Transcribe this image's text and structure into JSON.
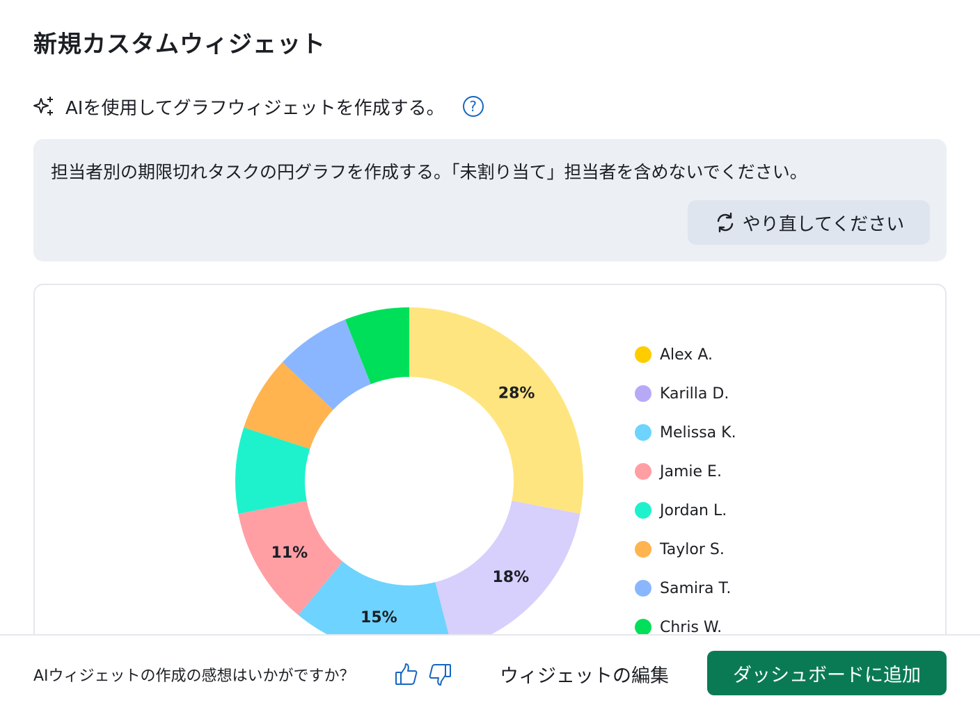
{
  "title": "新規カスタムウィジェット",
  "ai_prompt_label": "AIを使用してグラフウィジェットを作成する。",
  "help_icon_label": "?",
  "prompt_text": "担当者別の期限切れタスクの円グラフを作成する。「未割り当て」担当者を含めないでください。",
  "retry_label": "やり直してください",
  "chart_data": {
    "type": "pie",
    "variant": "donut",
    "series": [
      {
        "name": "Alex A.",
        "value": 28,
        "color": "#ffe57f",
        "legend_color": "#ffcc00",
        "label": "28%"
      },
      {
        "name": "Karilla D.",
        "value": 18,
        "color": "#d7cffc",
        "legend_color": "#b8a9f7",
        "label": "18%"
      },
      {
        "name": "Melissa K.",
        "value": 15,
        "color": "#6ed3fe",
        "legend_color": "#6ed3fe",
        "label": "15%"
      },
      {
        "name": "Jamie E.",
        "value": 11,
        "color": "#ff9fa4",
        "legend_color": "#ff9fa4",
        "label": "11%"
      },
      {
        "name": "Jordan L.",
        "value": 8,
        "color": "#1ef2cd",
        "legend_color": "#1ef2cd",
        "label": ""
      },
      {
        "name": "Taylor S.",
        "value": 7,
        "color": "#ffb44f",
        "legend_color": "#ffb44f",
        "label": ""
      },
      {
        "name": "Samira T.",
        "value": 7,
        "color": "#8ab6ff",
        "legend_color": "#8ab6ff",
        "label": ""
      },
      {
        "name": "Chris W.",
        "value": 6,
        "color": "#00df5a",
        "legend_color": "#00df5a",
        "label": ""
      }
    ],
    "legend_position": "right"
  },
  "footer": {
    "feedback_question": "AIウィジェットの作成の感想はいかがですか？",
    "edit_label": "ウィジェットの編集",
    "add_label": "ダッシュボードに追加"
  }
}
